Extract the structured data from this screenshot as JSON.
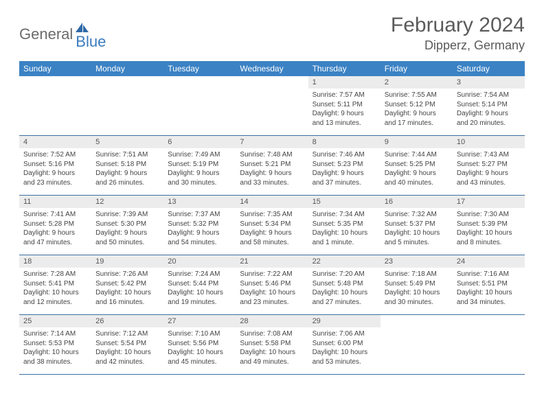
{
  "brand": {
    "part1": "General",
    "part2": "Blue"
  },
  "title": "February 2024",
  "location": "Dipperz, Germany",
  "colors": {
    "header_bg": "#3b82c4",
    "header_text": "#ffffff",
    "daynum_bg": "#ececec",
    "divider": "#3b6fa0",
    "brand_blue": "#3b7bbf",
    "brand_gray": "#6b6b6b",
    "text": "#444444"
  },
  "day_names": [
    "Sunday",
    "Monday",
    "Tuesday",
    "Wednesday",
    "Thursday",
    "Friday",
    "Saturday"
  ],
  "weeks": [
    [
      {
        "n": "",
        "sunrise": "",
        "sunset": "",
        "daylight": ""
      },
      {
        "n": "",
        "sunrise": "",
        "sunset": "",
        "daylight": ""
      },
      {
        "n": "",
        "sunrise": "",
        "sunset": "",
        "daylight": ""
      },
      {
        "n": "",
        "sunrise": "",
        "sunset": "",
        "daylight": ""
      },
      {
        "n": "1",
        "sunrise": "Sunrise: 7:57 AM",
        "sunset": "Sunset: 5:11 PM",
        "daylight": "Daylight: 9 hours and 13 minutes."
      },
      {
        "n": "2",
        "sunrise": "Sunrise: 7:55 AM",
        "sunset": "Sunset: 5:12 PM",
        "daylight": "Daylight: 9 hours and 17 minutes."
      },
      {
        "n": "3",
        "sunrise": "Sunrise: 7:54 AM",
        "sunset": "Sunset: 5:14 PM",
        "daylight": "Daylight: 9 hours and 20 minutes."
      }
    ],
    [
      {
        "n": "4",
        "sunrise": "Sunrise: 7:52 AM",
        "sunset": "Sunset: 5:16 PM",
        "daylight": "Daylight: 9 hours and 23 minutes."
      },
      {
        "n": "5",
        "sunrise": "Sunrise: 7:51 AM",
        "sunset": "Sunset: 5:18 PM",
        "daylight": "Daylight: 9 hours and 26 minutes."
      },
      {
        "n": "6",
        "sunrise": "Sunrise: 7:49 AM",
        "sunset": "Sunset: 5:19 PM",
        "daylight": "Daylight: 9 hours and 30 minutes."
      },
      {
        "n": "7",
        "sunrise": "Sunrise: 7:48 AM",
        "sunset": "Sunset: 5:21 PM",
        "daylight": "Daylight: 9 hours and 33 minutes."
      },
      {
        "n": "8",
        "sunrise": "Sunrise: 7:46 AM",
        "sunset": "Sunset: 5:23 PM",
        "daylight": "Daylight: 9 hours and 37 minutes."
      },
      {
        "n": "9",
        "sunrise": "Sunrise: 7:44 AM",
        "sunset": "Sunset: 5:25 PM",
        "daylight": "Daylight: 9 hours and 40 minutes."
      },
      {
        "n": "10",
        "sunrise": "Sunrise: 7:43 AM",
        "sunset": "Sunset: 5:27 PM",
        "daylight": "Daylight: 9 hours and 43 minutes."
      }
    ],
    [
      {
        "n": "11",
        "sunrise": "Sunrise: 7:41 AM",
        "sunset": "Sunset: 5:28 PM",
        "daylight": "Daylight: 9 hours and 47 minutes."
      },
      {
        "n": "12",
        "sunrise": "Sunrise: 7:39 AM",
        "sunset": "Sunset: 5:30 PM",
        "daylight": "Daylight: 9 hours and 50 minutes."
      },
      {
        "n": "13",
        "sunrise": "Sunrise: 7:37 AM",
        "sunset": "Sunset: 5:32 PM",
        "daylight": "Daylight: 9 hours and 54 minutes."
      },
      {
        "n": "14",
        "sunrise": "Sunrise: 7:35 AM",
        "sunset": "Sunset: 5:34 PM",
        "daylight": "Daylight: 9 hours and 58 minutes."
      },
      {
        "n": "15",
        "sunrise": "Sunrise: 7:34 AM",
        "sunset": "Sunset: 5:35 PM",
        "daylight": "Daylight: 10 hours and 1 minute."
      },
      {
        "n": "16",
        "sunrise": "Sunrise: 7:32 AM",
        "sunset": "Sunset: 5:37 PM",
        "daylight": "Daylight: 10 hours and 5 minutes."
      },
      {
        "n": "17",
        "sunrise": "Sunrise: 7:30 AM",
        "sunset": "Sunset: 5:39 PM",
        "daylight": "Daylight: 10 hours and 8 minutes."
      }
    ],
    [
      {
        "n": "18",
        "sunrise": "Sunrise: 7:28 AM",
        "sunset": "Sunset: 5:41 PM",
        "daylight": "Daylight: 10 hours and 12 minutes."
      },
      {
        "n": "19",
        "sunrise": "Sunrise: 7:26 AM",
        "sunset": "Sunset: 5:42 PM",
        "daylight": "Daylight: 10 hours and 16 minutes."
      },
      {
        "n": "20",
        "sunrise": "Sunrise: 7:24 AM",
        "sunset": "Sunset: 5:44 PM",
        "daylight": "Daylight: 10 hours and 19 minutes."
      },
      {
        "n": "21",
        "sunrise": "Sunrise: 7:22 AM",
        "sunset": "Sunset: 5:46 PM",
        "daylight": "Daylight: 10 hours and 23 minutes."
      },
      {
        "n": "22",
        "sunrise": "Sunrise: 7:20 AM",
        "sunset": "Sunset: 5:48 PM",
        "daylight": "Daylight: 10 hours and 27 minutes."
      },
      {
        "n": "23",
        "sunrise": "Sunrise: 7:18 AM",
        "sunset": "Sunset: 5:49 PM",
        "daylight": "Daylight: 10 hours and 30 minutes."
      },
      {
        "n": "24",
        "sunrise": "Sunrise: 7:16 AM",
        "sunset": "Sunset: 5:51 PM",
        "daylight": "Daylight: 10 hours and 34 minutes."
      }
    ],
    [
      {
        "n": "25",
        "sunrise": "Sunrise: 7:14 AM",
        "sunset": "Sunset: 5:53 PM",
        "daylight": "Daylight: 10 hours and 38 minutes."
      },
      {
        "n": "26",
        "sunrise": "Sunrise: 7:12 AM",
        "sunset": "Sunset: 5:54 PM",
        "daylight": "Daylight: 10 hours and 42 minutes."
      },
      {
        "n": "27",
        "sunrise": "Sunrise: 7:10 AM",
        "sunset": "Sunset: 5:56 PM",
        "daylight": "Daylight: 10 hours and 45 minutes."
      },
      {
        "n": "28",
        "sunrise": "Sunrise: 7:08 AM",
        "sunset": "Sunset: 5:58 PM",
        "daylight": "Daylight: 10 hours and 49 minutes."
      },
      {
        "n": "29",
        "sunrise": "Sunrise: 7:06 AM",
        "sunset": "Sunset: 6:00 PM",
        "daylight": "Daylight: 10 hours and 53 minutes."
      },
      {
        "n": "",
        "sunrise": "",
        "sunset": "",
        "daylight": ""
      },
      {
        "n": "",
        "sunrise": "",
        "sunset": "",
        "daylight": ""
      }
    ]
  ]
}
